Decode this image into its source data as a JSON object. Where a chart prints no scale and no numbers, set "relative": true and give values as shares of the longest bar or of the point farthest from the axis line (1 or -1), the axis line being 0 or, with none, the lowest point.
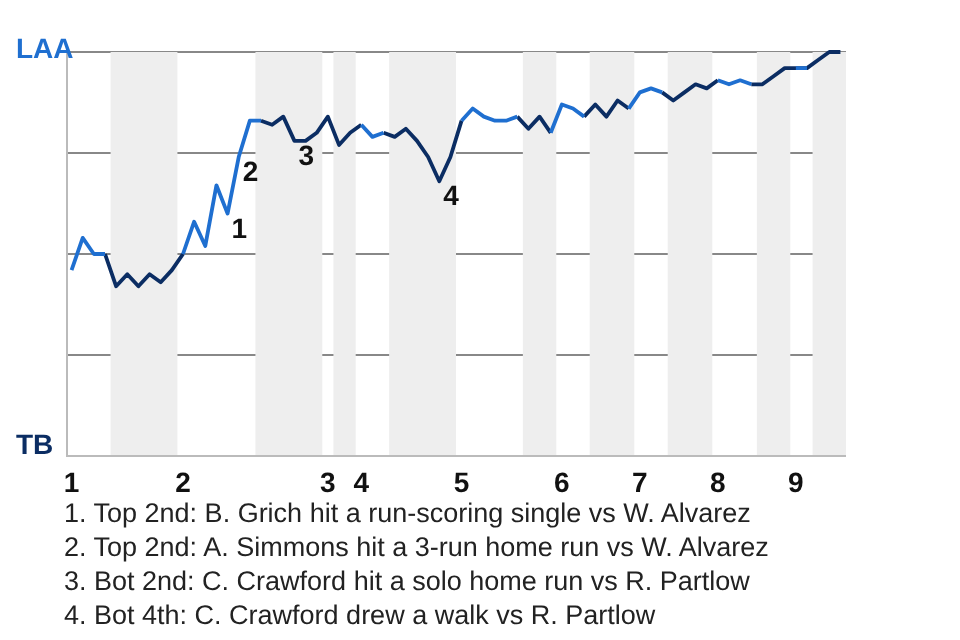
{
  "chart_data": {
    "type": "line",
    "relative": true,
    "categories": [
      "1",
      null,
      null,
      null,
      null,
      null,
      null,
      null,
      null,
      null,
      "2",
      null,
      null,
      null,
      null,
      null,
      null,
      null,
      null,
      null,
      null,
      null,
      null,
      "3",
      null,
      null,
      "4",
      null,
      null,
      null,
      null,
      null,
      null,
      null,
      null,
      "5",
      null,
      null,
      null,
      null,
      null,
      null,
      null,
      null,
      "6",
      null,
      null,
      null,
      null,
      null,
      null,
      "7",
      null,
      null,
      null,
      null,
      null,
      null,
      "8",
      null,
      null,
      null,
      null,
      null,
      null,
      "9",
      null,
      null,
      null,
      null
    ],
    "series": [
      {
        "name": "LAA",
        "color": "#1f6fd0",
        "values": [
          0.46,
          0.54,
          0.5,
          0.5,
          null,
          null,
          null,
          null,
          null,
          null,
          0.5,
          0.58,
          0.52,
          0.67,
          0.6,
          0.74,
          0.83,
          0.83,
          null,
          null,
          null,
          null,
          null,
          null,
          null,
          null,
          0.82,
          0.79,
          0.8,
          null,
          null,
          null,
          null,
          null,
          null,
          0.83,
          0.86,
          0.84,
          0.83,
          0.83,
          0.84,
          null,
          null,
          0.8,
          0.87,
          0.86,
          0.84,
          null,
          null,
          null,
          0.86,
          0.9,
          0.91,
          0.9,
          null,
          null,
          null,
          null,
          0.93,
          0.92,
          0.93,
          0.92,
          null,
          null,
          null,
          0.96,
          0.96,
          null,
          null,
          null
        ]
      },
      {
        "name": "TB",
        "color": "#0b2d63",
        "values": [
          null,
          null,
          null,
          0.5,
          0.42,
          0.45,
          0.42,
          0.45,
          0.43,
          0.46,
          0.5,
          null,
          null,
          null,
          null,
          null,
          null,
          0.83,
          0.82,
          0.84,
          0.78,
          0.78,
          0.8,
          0.84,
          0.77,
          0.8,
          0.82,
          null,
          0.8,
          0.79,
          0.81,
          0.78,
          0.74,
          0.68,
          0.74,
          0.83,
          null,
          null,
          null,
          null,
          0.84,
          0.81,
          0.84,
          0.8,
          null,
          null,
          0.84,
          0.87,
          0.84,
          0.88,
          0.86,
          null,
          null,
          0.9,
          0.88,
          0.9,
          0.92,
          0.91,
          0.93,
          null,
          null,
          0.92,
          0.92,
          0.94,
          0.96,
          0.96,
          0.96,
          0.98,
          1,
          1
        ]
      }
    ],
    "grid": "y",
    "legend": "left",
    "annotations": [
      {
        "text": "1",
        "y": 0.6
      },
      {
        "text": "2",
        "y": 0.74
      },
      {
        "text": "3",
        "y": 0.78
      },
      {
        "text": "4",
        "y": 0.68
      },
      "1. Top 2nd: B. Grich hit a run-scoring single vs W. Alvarez",
      "2. Top 2nd: A. Simmons hit a 3-run home run vs W. Alvarez",
      "3. Bot 2nd: C. Crawford hit a solo home run vs R. Partlow",
      "4. Bot 4th: C. Crawford drew a walk vs R. Partlow"
    ]
  }
}
